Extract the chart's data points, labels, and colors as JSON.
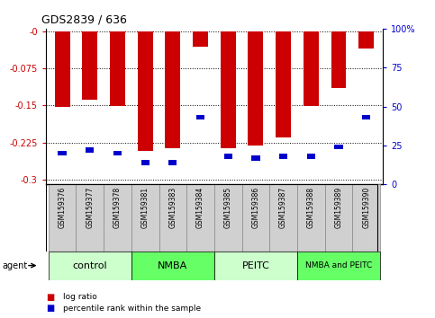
{
  "title": "GDS2839 / 636",
  "samples": [
    "GSM159376",
    "GSM159377",
    "GSM159378",
    "GSM159381",
    "GSM159383",
    "GSM159384",
    "GSM159385",
    "GSM159386",
    "GSM159387",
    "GSM159388",
    "GSM159389",
    "GSM159390"
  ],
  "log_ratio": [
    -0.153,
    -0.138,
    -0.152,
    -0.243,
    -0.237,
    -0.032,
    -0.237,
    -0.232,
    -0.215,
    -0.152,
    -0.115,
    -0.035
  ],
  "percentile_rank": [
    20,
    22,
    20,
    14,
    14,
    43,
    18,
    17,
    18,
    18,
    24,
    43
  ],
  "groups": [
    {
      "label": "control",
      "color": "#ccffcc",
      "start": 0,
      "end": 3
    },
    {
      "label": "NMBA",
      "color": "#66ff66",
      "start": 3,
      "end": 6
    },
    {
      "label": "PEITC",
      "color": "#ccffcc",
      "start": 6,
      "end": 9
    },
    {
      "label": "NMBA and PEITC",
      "color": "#66ff66",
      "start": 9,
      "end": 12
    }
  ],
  "ylim_left": [
    -0.31,
    0.005
  ],
  "yticks_left": [
    0.0,
    -0.075,
    -0.15,
    -0.225,
    -0.3
  ],
  "ytick_labels_left": [
    "-0",
    "-0.075",
    "-0.15",
    "-0.225",
    "-0.3"
  ],
  "ylim_right": [
    0,
    100
  ],
  "yticks_right": [
    0,
    25,
    50,
    75,
    100
  ],
  "ytick_labels_right": [
    "0",
    "25",
    "50",
    "75",
    "100%"
  ],
  "bar_color": "#cc0000",
  "marker_color": "#0000cc",
  "bar_width": 0.55,
  "legend_items": [
    {
      "label": "log ratio",
      "color": "#cc0000"
    },
    {
      "label": "percentile rank within the sample",
      "color": "#0000cc"
    }
  ]
}
